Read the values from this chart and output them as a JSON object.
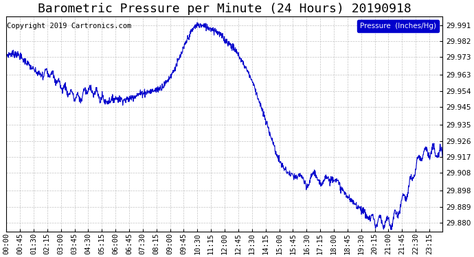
{
  "title": "Barometric Pressure per Minute (24 Hours) 20190918",
  "copyright": "Copyright 2019 Cartronics.com",
  "legend_label": "Pressure  (Inches/Hg)",
  "line_color": "#0000CC",
  "background_color": "#FFFFFF",
  "plot_bg_color": "#FFFFFF",
  "grid_color": "#AAAAAA",
  "legend_bg": "#0000CC",
  "legend_text_color": "#FFFFFF",
  "yticks": [
    29.88,
    29.889,
    29.898,
    29.908,
    29.917,
    29.926,
    29.935,
    29.945,
    29.954,
    29.963,
    29.973,
    29.982,
    29.991
  ],
  "ymin": 29.875,
  "ymax": 29.996,
  "xtick_labels": [
    "00:00",
    "00:45",
    "01:30",
    "02:15",
    "03:00",
    "03:45",
    "04:30",
    "05:15",
    "06:00",
    "06:45",
    "07:30",
    "08:15",
    "09:00",
    "09:45",
    "10:30",
    "11:15",
    "12:00",
    "12:45",
    "13:30",
    "14:15",
    "15:00",
    "15:45",
    "16:30",
    "17:15",
    "18:00",
    "18:45",
    "19:30",
    "20:15",
    "21:00",
    "21:45",
    "22:30",
    "23:15"
  ],
  "title_fontsize": 13,
  "tick_fontsize": 7.5,
  "copyright_fontsize": 7.5
}
